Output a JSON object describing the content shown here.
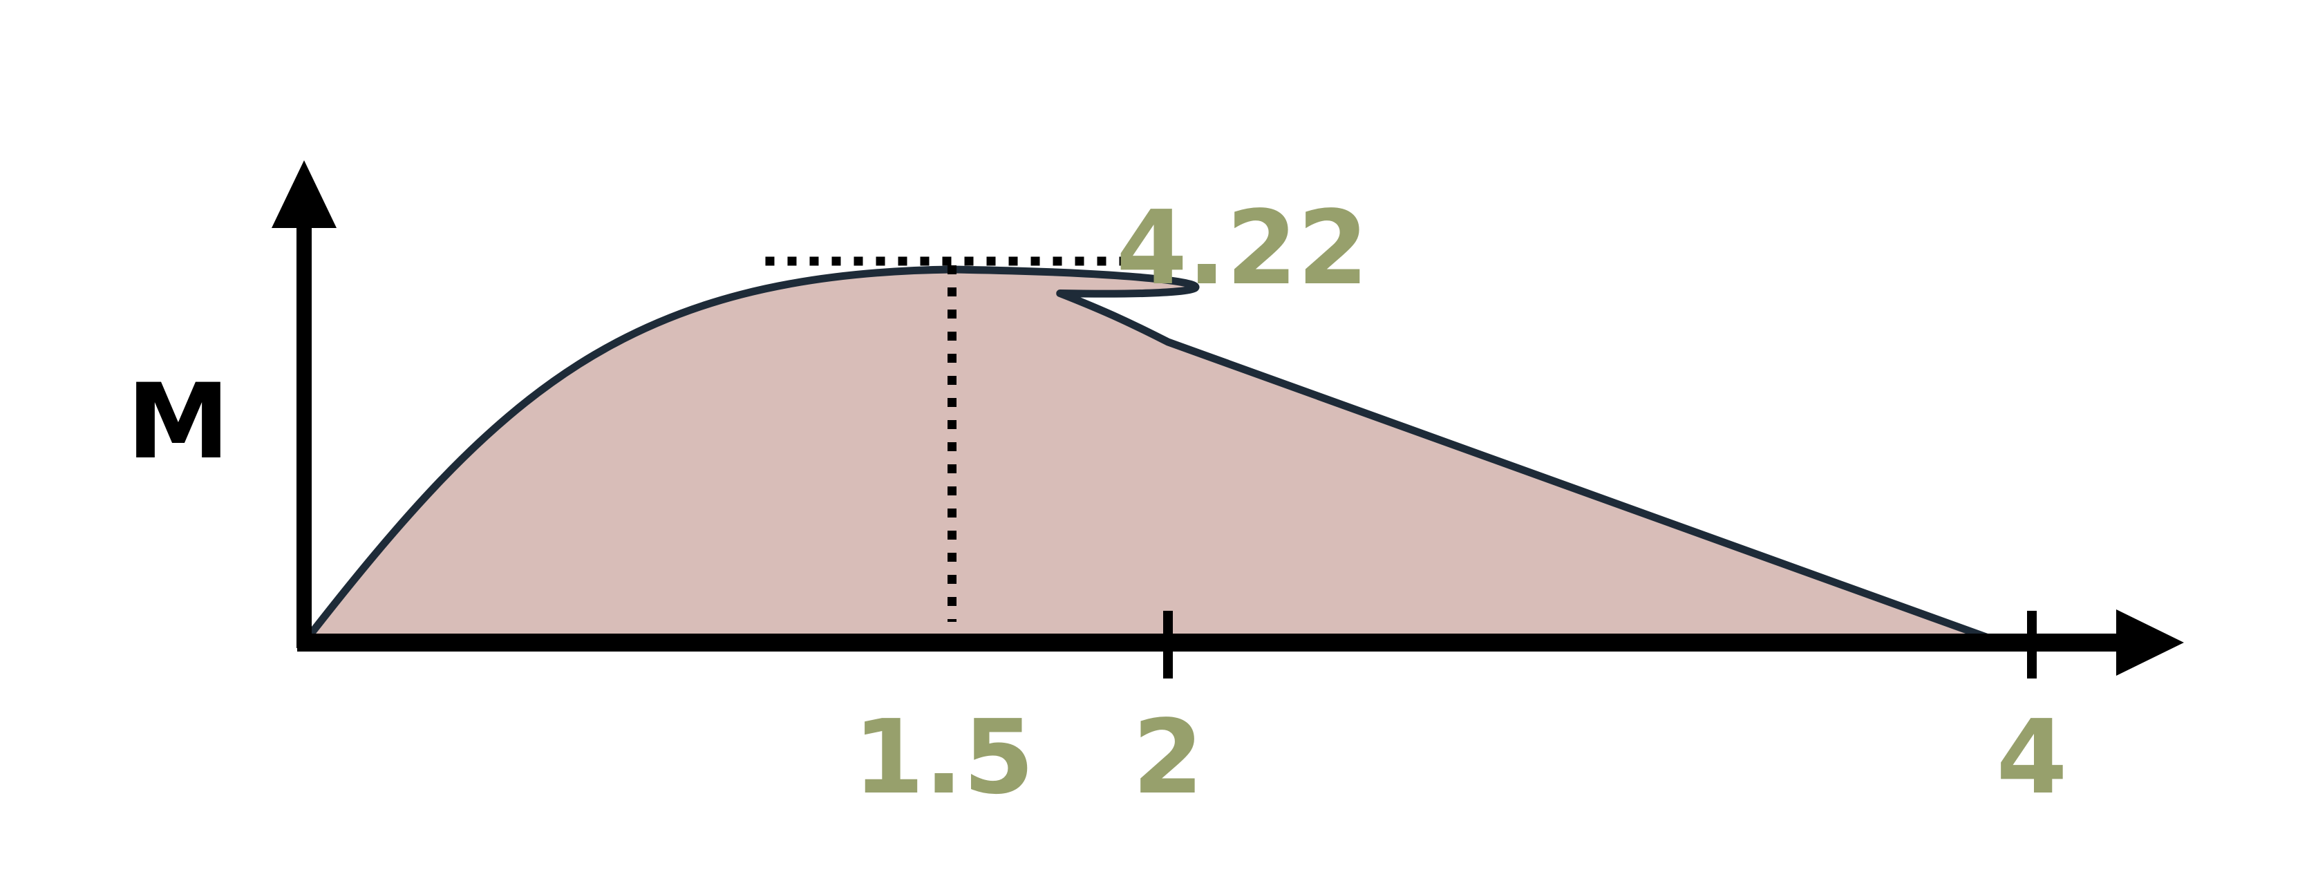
{
  "diagram": {
    "y_axis_label": "M",
    "peak": {
      "x": 1.5,
      "value": 4.22,
      "label": "4.22"
    },
    "x_ticks": [
      {
        "value": 1.5,
        "label": "1.5",
        "tick_mark": false
      },
      {
        "value": 2,
        "label": "2",
        "tick_mark": true
      },
      {
        "value": 4,
        "label": "4",
        "tick_mark": true
      }
    ],
    "curve": [
      [
        0,
        0
      ],
      [
        0.5,
        2.6
      ],
      [
        1.0,
        3.85
      ],
      [
        1.5,
        4.22
      ],
      [
        1.8,
        4.05
      ],
      [
        2.0,
        3.4
      ],
      [
        3.93,
        0
      ]
    ],
    "colors": {
      "fill": "#d8bdb8",
      "stroke": "#1e2b38",
      "axis": "#000000",
      "value_text": "#97a06c",
      "axis_text": "#000000"
    }
  }
}
